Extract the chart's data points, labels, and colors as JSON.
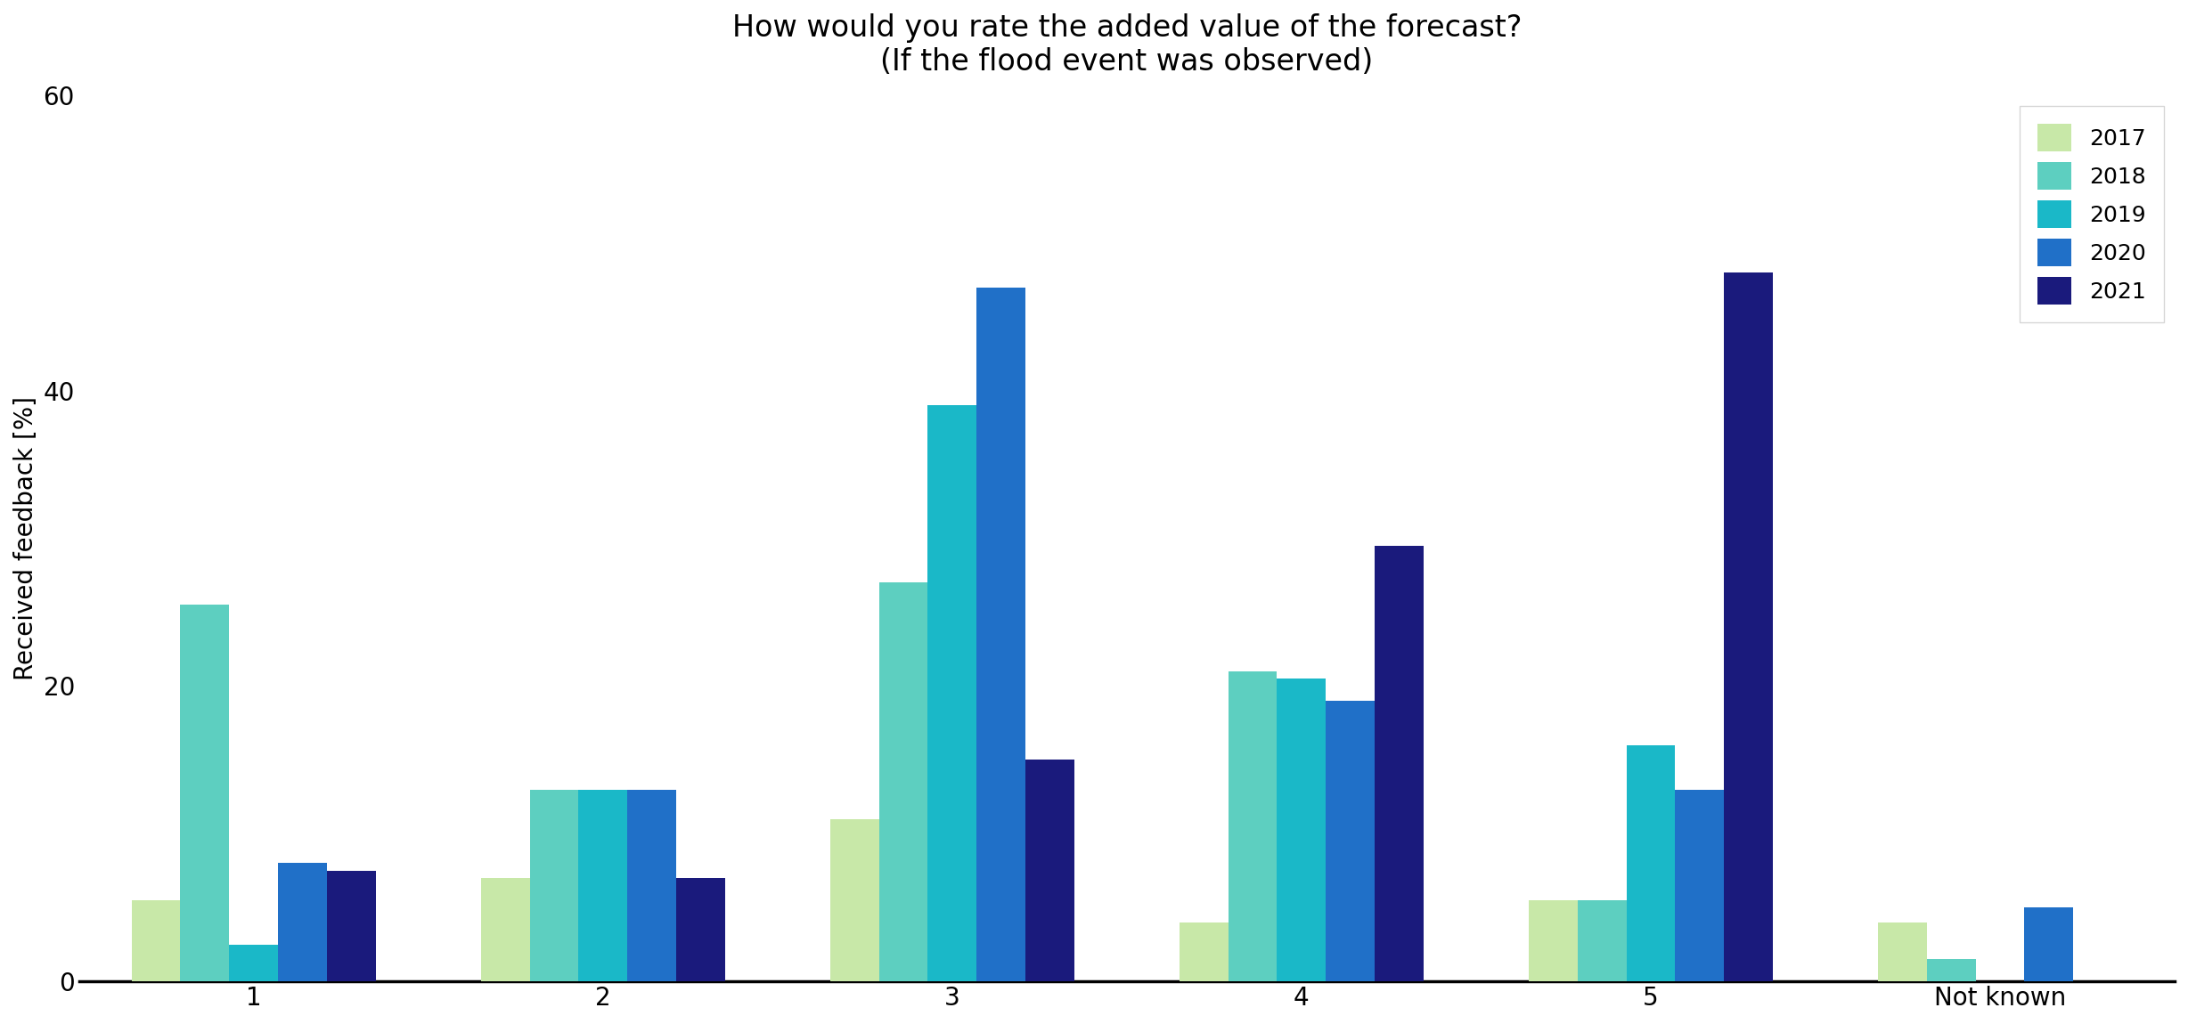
{
  "title": "How would you rate the added value of the forecast?\n(If the flood event was observed)",
  "ylabel": "Received feedback [%]",
  "xlabel": "",
  "categories": [
    "1",
    "2",
    "3",
    "4",
    "5",
    "Not known"
  ],
  "years": [
    "2017",
    "2018",
    "2019",
    "2020",
    "2021"
  ],
  "colors": [
    "#c8e8a8",
    "#5dcfc0",
    "#1ab8c8",
    "#2070c8",
    "#1a1a7c"
  ],
  "values": {
    "2017": [
      5.5,
      7.0,
      11.0,
      4.0,
      5.5,
      4.0
    ],
    "2018": [
      25.5,
      13.0,
      27.0,
      21.0,
      5.5,
      1.5
    ],
    "2019": [
      2.5,
      13.0,
      39.0,
      20.5,
      16.0,
      0.0
    ],
    "2020": [
      8.0,
      13.0,
      47.0,
      19.0,
      13.0,
      5.0
    ],
    "2021": [
      7.5,
      7.0,
      15.0,
      29.5,
      48.0,
      0.0
    ]
  },
  "ylim": [
    0,
    60
  ],
  "yticks": [
    0,
    20,
    40,
    60
  ],
  "legend_loc": "upper right",
  "bar_width": 0.14,
  "figsize": [
    24.56,
    11.5
  ],
  "dpi": 100
}
